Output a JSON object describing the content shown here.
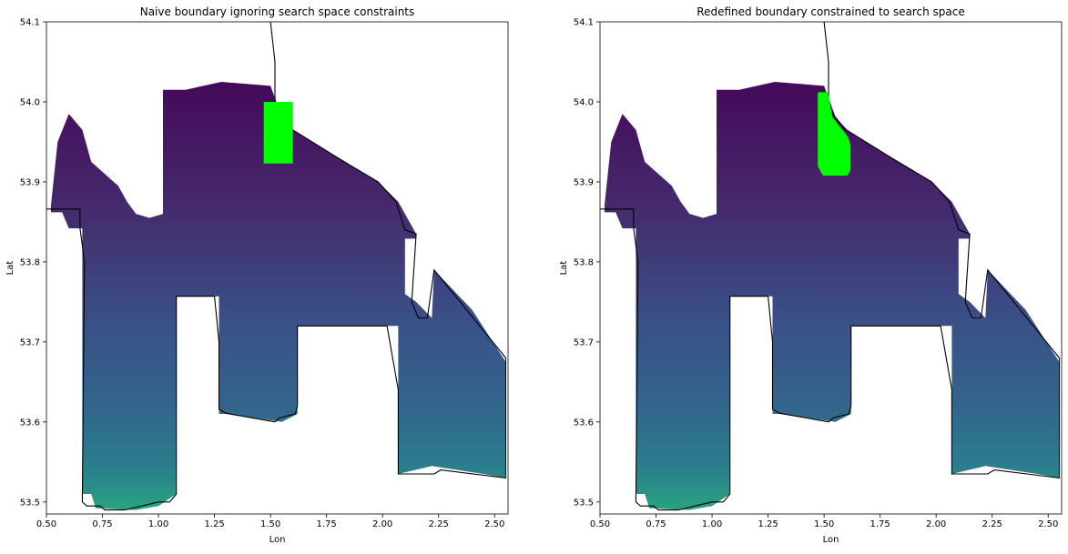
{
  "chart_data": [
    {
      "type": "scatter",
      "title": "Naive boundary ignoring search space constraints",
      "xlabel": "Lon",
      "ylabel": "Lat",
      "xlim": [
        0.5,
        2.56
      ],
      "ylim": [
        53.485,
        54.1
      ],
      "xticks": [
        0.5,
        0.75,
        1.0,
        1.25,
        1.5,
        1.75,
        2.0,
        2.25,
        2.5
      ],
      "xtick_labels": [
        "0.50",
        "0.75",
        "1.00",
        "1.25",
        "1.50",
        "1.75",
        "2.00",
        "2.25",
        "2.50"
      ],
      "yticks": [
        53.5,
        53.6,
        53.7,
        53.8,
        53.9,
        54.0,
        54.1
      ],
      "ytick_labels": [
        "53.5",
        "53.6",
        "53.7",
        "53.8",
        "53.9",
        "54.0",
        "54.1"
      ],
      "grid": false,
      "colormap": "viridis",
      "highlight_color": "#00ff00",
      "highlight_region": [
        [
          1.47,
          54.0
        ],
        [
          1.6,
          54.0
        ],
        [
          1.6,
          53.923
        ],
        [
          1.47,
          53.923
        ]
      ]
    },
    {
      "type": "scatter",
      "title": "Redefined boundary constrained to search space",
      "xlabel": "Lon",
      "ylabel": "Lat",
      "xlim": [
        0.5,
        2.56
      ],
      "ylim": [
        53.485,
        54.1
      ],
      "xticks": [
        0.5,
        0.75,
        1.0,
        1.25,
        1.5,
        1.75,
        2.0,
        2.25,
        2.5
      ],
      "xtick_labels": [
        "0.50",
        "0.75",
        "1.00",
        "1.25",
        "1.50",
        "1.75",
        "2.00",
        "2.25",
        "2.50"
      ],
      "yticks": [
        53.5,
        53.6,
        53.7,
        53.8,
        53.9,
        54.0,
        54.1
      ],
      "ytick_labels": [
        "53.5",
        "53.6",
        "53.7",
        "53.8",
        "53.9",
        "54.0",
        "54.1"
      ],
      "grid": false,
      "colormap": "viridis",
      "highlight_color": "#00ff00",
      "highlight_region": [
        [
          1.48,
          54.01
        ],
        [
          1.51,
          54.01
        ],
        [
          1.53,
          53.98
        ],
        [
          1.6,
          53.955
        ],
        [
          1.61,
          53.945
        ],
        [
          1.61,
          53.915
        ],
        [
          1.6,
          53.91
        ],
        [
          1.5,
          53.91
        ],
        [
          1.48,
          53.92
        ]
      ]
    }
  ],
  "shared_shape": {
    "data_region": [
      [
        0.52,
        53.87
      ],
      [
        0.55,
        53.95
      ],
      [
        0.6,
        53.985
      ],
      [
        0.66,
        53.965
      ],
      [
        0.7,
        53.925
      ],
      [
        0.76,
        53.91
      ],
      [
        0.82,
        53.895
      ],
      [
        0.86,
        53.875
      ],
      [
        0.9,
        53.86
      ],
      [
        0.96,
        53.855
      ],
      [
        1.02,
        53.86
      ],
      [
        1.02,
        54.015
      ],
      [
        1.12,
        54.015
      ],
      [
        1.28,
        54.025
      ],
      [
        1.5,
        54.02
      ],
      [
        1.55,
        53.982
      ],
      [
        1.6,
        53.965
      ],
      [
        1.8,
        53.93
      ],
      [
        1.98,
        53.9
      ],
      [
        2.07,
        53.875
      ],
      [
        2.15,
        53.835
      ],
      [
        2.15,
        53.829
      ],
      [
        2.1,
        53.829
      ],
      [
        2.1,
        53.76
      ],
      [
        2.15,
        53.75
      ],
      [
        2.22,
        53.73
      ],
      [
        2.23,
        53.79
      ],
      [
        2.4,
        53.74
      ],
      [
        2.55,
        53.675
      ],
      [
        2.55,
        53.53
      ],
      [
        2.45,
        53.535
      ],
      [
        2.22,
        53.545
      ],
      [
        2.07,
        53.535
      ],
      [
        2.07,
        53.72
      ],
      [
        1.62,
        53.72
      ],
      [
        1.62,
        53.61
      ],
      [
        1.55,
        53.6
      ],
      [
        1.3,
        53.61
      ],
      [
        1.27,
        53.61
      ],
      [
        1.27,
        53.757
      ],
      [
        1.08,
        53.757
      ],
      [
        1.08,
        53.51
      ],
      [
        1.0,
        53.495
      ],
      [
        0.9,
        53.49
      ],
      [
        0.72,
        53.492
      ],
      [
        0.7,
        53.51
      ],
      [
        0.66,
        53.51
      ],
      [
        0.66,
        53.842
      ],
      [
        0.6,
        53.842
      ],
      [
        0.57,
        53.862
      ],
      [
        0.52,
        53.862
      ]
    ],
    "boundary": [
      [
        0.5,
        53.866
      ],
      [
        0.65,
        53.866
      ],
      [
        0.65,
        53.842
      ],
      [
        0.67,
        53.8
      ],
      [
        0.66,
        53.5
      ],
      [
        0.68,
        53.495
      ],
      [
        0.74,
        53.495
      ],
      [
        0.76,
        53.49
      ],
      [
        0.85,
        53.49
      ],
      [
        1.0,
        53.5
      ],
      [
        1.05,
        53.5
      ],
      [
        1.08,
        53.51
      ],
      [
        1.08,
        53.757
      ],
      [
        1.25,
        53.757
      ],
      [
        1.27,
        53.7
      ],
      [
        1.27,
        53.616
      ],
      [
        1.3,
        53.611
      ],
      [
        1.52,
        53.6
      ],
      [
        1.54,
        53.605
      ],
      [
        1.61,
        53.61
      ],
      [
        1.62,
        53.62
      ],
      [
        1.62,
        53.72
      ],
      [
        2.02,
        53.72
      ],
      [
        2.07,
        53.64
      ],
      [
        2.07,
        53.535
      ],
      [
        2.23,
        53.535
      ],
      [
        2.26,
        53.54
      ],
      [
        2.55,
        53.53
      ],
      [
        2.55,
        53.68
      ],
      [
        2.23,
        53.79
      ],
      [
        2.2,
        53.73
      ],
      [
        2.16,
        53.73
      ],
      [
        2.13,
        53.75
      ],
      [
        2.15,
        53.835
      ],
      [
        2.1,
        53.84
      ],
      [
        2.06,
        53.875
      ],
      [
        1.98,
        53.9
      ],
      [
        1.8,
        53.93
      ],
      [
        1.6,
        53.965
      ],
      [
        1.55,
        53.98
      ],
      [
        1.52,
        53.998
      ],
      [
        1.52,
        54.05
      ],
      [
        1.5,
        54.1
      ]
    ]
  }
}
